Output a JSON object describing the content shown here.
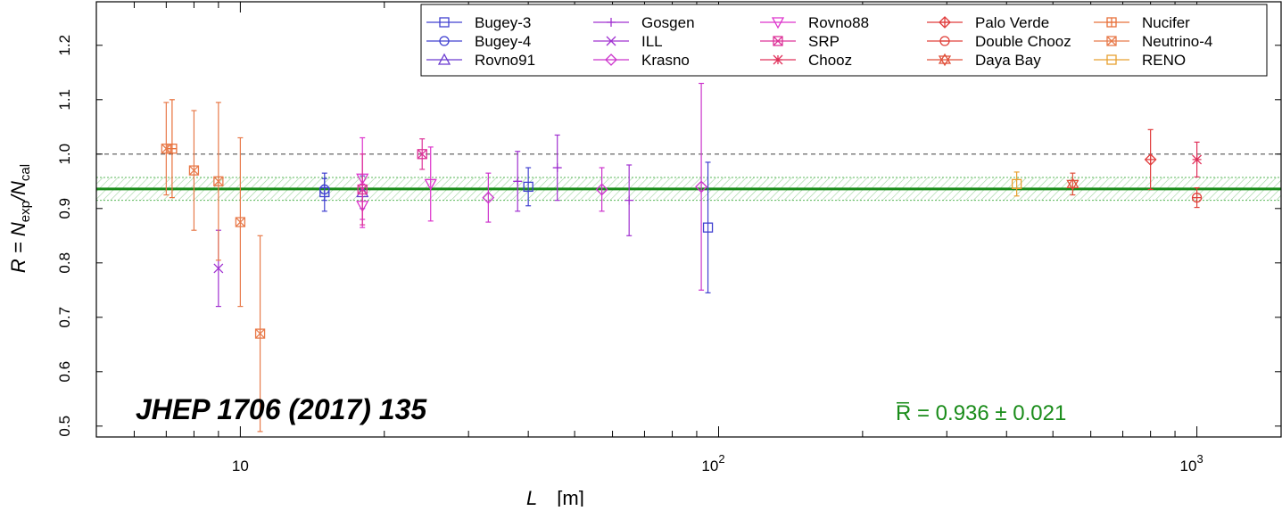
{
  "chart_data": {
    "type": "scatter",
    "xscale": "log",
    "xlim": [
      5,
      1500
    ],
    "ylim": [
      0.48,
      1.28
    ],
    "xticks": [
      10,
      100,
      1000
    ],
    "xtick_labels": [
      {
        "base": "10",
        "exp": ""
      },
      {
        "base": "10",
        "exp": "2"
      },
      {
        "base": "10",
        "exp": "3"
      }
    ],
    "yticks": [
      0.5,
      0.6,
      0.7,
      0.8,
      0.9,
      1.0,
      1.1,
      1.2
    ],
    "ytick_labels": [
      "0.5",
      "0.6",
      "0.7",
      "0.8",
      "0.9",
      "1.0",
      "1.1",
      "1.2"
    ],
    "xlabel": {
      "main": "L",
      "unit": "[m]"
    },
    "ylabel": {
      "lhs": "R = N",
      "num_sub": "exp",
      "slash": "/N",
      "den_sub": "cal"
    },
    "reference_line": 1.0,
    "mean": {
      "value": 0.936,
      "band": [
        0.915,
        0.957
      ]
    },
    "mean_label": "R̅ = 0.936 ± 0.021",
    "annotation": "JHEP 1706 (2017) 135",
    "legend_placement": "top-right",
    "series": [
      {
        "name": "Bugey-3",
        "color": "#4040d0",
        "marker": "square",
        "points": [
          [
            15,
            0.93,
            0.035
          ],
          [
            40,
            0.94,
            0.035
          ],
          [
            95,
            0.865,
            0.12
          ]
        ]
      },
      {
        "name": "Bugey-4",
        "color": "#4040d0",
        "marker": "circle",
        "points": [
          [
            15,
            0.935,
            0.02
          ]
        ]
      },
      {
        "name": "Rovno91",
        "color": "#6a3ad0",
        "marker": "triangle-up",
        "points": [
          [
            18,
            0.93,
            0.03
          ]
        ]
      },
      {
        "name": "Gosgen",
        "color": "#a030d0",
        "marker": "plus",
        "points": [
          [
            38,
            0.95,
            0.055
          ],
          [
            46,
            0.975,
            0.06
          ],
          [
            65,
            0.915,
            0.065
          ]
        ]
      },
      {
        "name": "ILL",
        "color": "#a030d0",
        "marker": "x",
        "points": [
          [
            9,
            0.79,
            0.07
          ]
        ]
      },
      {
        "name": "Krasno",
        "color": "#cc33cc",
        "marker": "diamond",
        "points": [
          [
            33,
            0.92,
            0.045
          ],
          [
            57,
            0.935,
            0.04
          ],
          [
            92,
            0.94,
            0.19
          ]
        ]
      },
      {
        "name": "Rovno88",
        "color": "#dd33cc",
        "marker": "triangle-down",
        "points": [
          [
            18,
            0.955,
            0.075
          ],
          [
            18,
            0.905,
            0.04
          ],
          [
            25,
            0.945,
            0.068
          ]
        ]
      },
      {
        "name": "SRP",
        "color": "#dd3399",
        "marker": "square-x",
        "points": [
          [
            18,
            0.935,
            0.065
          ],
          [
            24,
            1.0,
            0.028
          ]
        ]
      },
      {
        "name": "Chooz",
        "color": "#e0305a",
        "marker": "star",
        "points": [
          [
            1000,
            0.99,
            0.032
          ]
        ]
      },
      {
        "name": "Palo Verde",
        "color": "#e03a3a",
        "marker": "diamond-plus",
        "points": [
          [
            800,
            0.99,
            0.055
          ]
        ]
      },
      {
        "name": "Double Chooz",
        "color": "#e0403a",
        "marker": "circle-minus",
        "points": [
          [
            1000,
            0.92,
            0.018
          ]
        ]
      },
      {
        "name": "Daya Bay",
        "color": "#e0503a",
        "marker": "star-of-david",
        "points": [
          [
            550,
            0.945,
            0.02
          ]
        ]
      },
      {
        "name": "Nucifer",
        "color": "#e8703a",
        "marker": "square-plus",
        "points": [
          [
            7.2,
            1.01,
            0.09
          ]
        ]
      },
      {
        "name": "Neutrino-4",
        "color": "#e87a4a",
        "marker": "square-x",
        "points": [
          [
            7,
            1.01,
            0.085
          ],
          [
            8,
            0.97,
            0.11
          ],
          [
            9,
            0.95,
            0.145
          ],
          [
            10,
            0.875,
            0.155
          ],
          [
            11,
            0.67,
            0.18
          ]
        ]
      },
      {
        "name": "RENO",
        "color": "#e8a030",
        "marker": "square",
        "points": [
          [
            420,
            0.945,
            0.022
          ]
        ]
      }
    ]
  }
}
